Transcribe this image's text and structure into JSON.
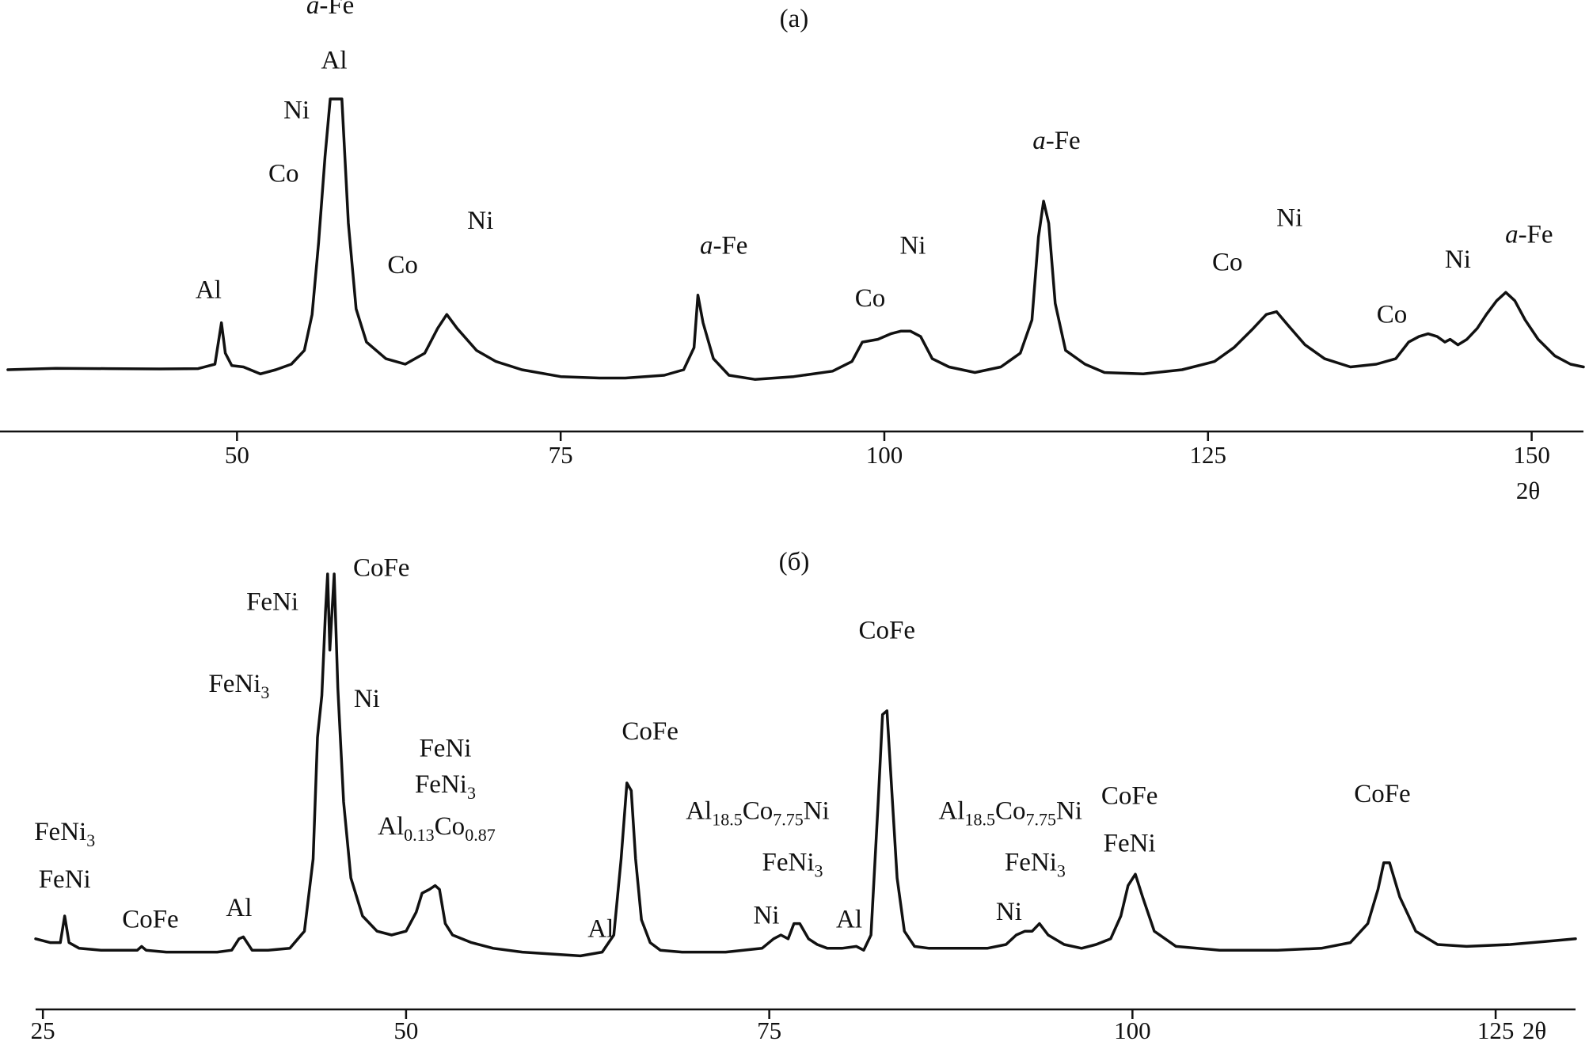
{
  "chart_data": [
    {
      "type": "line",
      "panel_label": "(а)",
      "title": "",
      "xlabel": "2θ",
      "ylabel": "",
      "xlim": [
        32,
        154
      ],
      "ylim": [
        0,
        100
      ],
      "xticks": [
        50,
        75,
        100,
        125,
        150
      ],
      "tick_labels": [
        "50",
        "75",
        "100",
        "125",
        "150"
      ],
      "grid": false,
      "legend": "none",
      "series": [
        {
          "name": "",
          "x": [
            32.3,
            36,
            40,
            44,
            47,
            48.3,
            48.8,
            49.1,
            49.6,
            50.5,
            51.8,
            53,
            54.2,
            55.2,
            55.8,
            56.3,
            56.8,
            57.2,
            57.6,
            58.1,
            58.6,
            59.2,
            60,
            61.5,
            63,
            64.5,
            65.5,
            66.2,
            67,
            68.5,
            70,
            72,
            75,
            78,
            80,
            83,
            84.5,
            85.3,
            85.6,
            86,
            86.8,
            88,
            90,
            93,
            96,
            97.5,
            98.3,
            99.5,
            100.5,
            101.3,
            102,
            102.8,
            103.7,
            105,
            107,
            109,
            110.5,
            111.4,
            111.9,
            112.3,
            112.7,
            113.2,
            114,
            115.5,
            117,
            120,
            123,
            125.5,
            127,
            128.5,
            129.5,
            130.3,
            131.2,
            132.5,
            134,
            136,
            138,
            139.5,
            140.5,
            141.3,
            142,
            142.7,
            143.3,
            143.7,
            144.3,
            145,
            145.8,
            146.5,
            147.3,
            148,
            148.7,
            149.5,
            150.5,
            151.8,
            153,
            154
          ],
          "y": [
            2,
            2.5,
            2.4,
            2.3,
            2.4,
            4,
            19,
            8,
            3.5,
            3,
            0.5,
            2,
            4,
            9,
            22,
            48,
            79,
            100,
            100,
            100,
            55,
            24,
            12,
            6,
            4,
            8,
            17,
            22,
            17,
            9,
            5,
            2,
            -0.5,
            -1,
            -1,
            0,
            2,
            10,
            29,
            19,
            6,
            0,
            -1.5,
            -0.5,
            1.5,
            5,
            12,
            13,
            15,
            16,
            16,
            14,
            6,
            3,
            1,
            3,
            8,
            20,
            50,
            63,
            55,
            26,
            9,
            4,
            1,
            0.5,
            2,
            5,
            10,
            17,
            22,
            23,
            18,
            11,
            6,
            3,
            4,
            6,
            12,
            14,
            15,
            14,
            12,
            13,
            11,
            13,
            17,
            22,
            27,
            30,
            27,
            20,
            13,
            7,
            4,
            3
          ]
        }
      ],
      "annotations": [
        {
          "text_prefix": "a",
          "text_suffix": "-Fe",
          "x": 57.2,
          "y": 131,
          "type": "afe"
        },
        {
          "text": "Al",
          "x": 57.5,
          "y": 111,
          "type": "plain"
        },
        {
          "text": "Ni",
          "x": 54.6,
          "y": 93,
          "type": "plain"
        },
        {
          "text": "Co",
          "x": 53.6,
          "y": 70,
          "type": "plain"
        },
        {
          "text": "Al",
          "x": 47.8,
          "y": 28,
          "type": "plain"
        },
        {
          "text": "Co",
          "x": 62.8,
          "y": 37,
          "type": "plain"
        },
        {
          "text": "Ni",
          "x": 68.8,
          "y": 53,
          "type": "plain"
        },
        {
          "text_prefix": "a",
          "text_suffix": "-Fe",
          "x": 87.6,
          "y": 44,
          "type": "afe"
        },
        {
          "text": "Co",
          "x": 98.9,
          "y": 25,
          "type": "plain"
        },
        {
          "text": "Ni",
          "x": 102.2,
          "y": 44,
          "type": "plain"
        },
        {
          "text_prefix": "a",
          "text_suffix": "-Fe",
          "x": 113.3,
          "y": 82,
          "type": "afe"
        },
        {
          "text": "Co",
          "x": 126.5,
          "y": 38,
          "type": "plain"
        },
        {
          "text": "Ni",
          "x": 131.3,
          "y": 54,
          "type": "plain"
        },
        {
          "text": "Co",
          "x": 139.2,
          "y": 19,
          "type": "plain"
        },
        {
          "text": "Ni",
          "x": 144.3,
          "y": 39,
          "type": "plain"
        },
        {
          "text_prefix": "a",
          "text_suffix": "-Fe",
          "x": 149.8,
          "y": 48,
          "type": "afe"
        }
      ]
    },
    {
      "type": "line",
      "panel_label": "(б)",
      "title": "",
      "xlabel": "2θ",
      "ylabel": "",
      "xlim": [
        24.5,
        130.5
      ],
      "ylim": [
        0,
        100
      ],
      "xticks": [
        25,
        50,
        75,
        100,
        125
      ],
      "tick_labels": [
        "25",
        "50",
        "75",
        "100",
        "125"
      ],
      "grid": false,
      "legend": "none",
      "series": [
        {
          "name": "",
          "x": [
            24.5,
            25.5,
            26.2,
            26.5,
            26.8,
            27.5,
            29,
            30.5,
            31.5,
            31.8,
            32.1,
            33.5,
            35,
            37,
            38,
            38.5,
            38.8,
            39.4,
            40.5,
            42,
            43,
            43.6,
            43.9,
            44.2,
            44.45,
            44.6,
            44.75,
            45.05,
            45.3,
            45.7,
            46.2,
            47,
            48,
            49,
            50,
            50.7,
            51.1,
            51.6,
            52,
            52.3,
            52.7,
            53.2,
            54.5,
            56,
            58,
            60,
            62,
            63.5,
            64.3,
            64.8,
            65.2,
            65.5,
            65.8,
            66.2,
            66.8,
            67.5,
            69,
            72,
            74.5,
            75.3,
            75.8,
            76.3,
            76.7,
            77.1,
            77.7,
            78.3,
            79,
            80,
            81,
            81.5,
            82,
            82.5,
            82.8,
            83.1,
            83.4,
            83.8,
            84.3,
            85,
            86,
            88,
            90,
            91.3,
            92,
            92.6,
            93.1,
            93.6,
            94.2,
            95.3,
            96.5,
            97.5,
            98.5,
            99.2,
            99.7,
            100.2,
            100.7,
            101.5,
            103,
            106,
            110,
            113,
            115,
            116.2,
            116.9,
            117.3,
            117.7,
            118.4,
            119.5,
            121,
            123,
            126,
            129,
            130.5
          ],
          "y": [
            4,
            3,
            3,
            10,
            3,
            1.5,
            1,
            1,
            1,
            2,
            1,
            0.5,
            0.5,
            0.5,
            1,
            4,
            4.5,
            1,
            1,
            1.5,
            6,
            25,
            57,
            68,
            90,
            100,
            80,
            100,
            70,
            40,
            20,
            10,
            6,
            5,
            6,
            11,
            16,
            17,
            18,
            17,
            8,
            5,
            3,
            1.5,
            0.5,
            0,
            -0.5,
            0.5,
            5,
            25,
            45,
            43,
            25,
            9,
            3,
            1,
            0.5,
            0.5,
            1.5,
            4,
            5,
            4,
            8,
            8,
            4,
            2.5,
            1.5,
            1.5,
            2,
            1,
            5,
            40,
            63,
            64,
            45,
            20,
            6,
            2,
            1.5,
            1.5,
            1.5,
            2.5,
            5,
            6,
            6,
            8,
            5,
            2.5,
            1.5,
            2.5,
            4,
            10,
            18,
            21,
            15,
            6,
            2,
            1,
            1,
            1.5,
            3,
            8,
            17,
            24,
            24,
            15,
            6,
            2.5,
            2,
            2.5,
            3.5,
            4
          ]
        }
      ],
      "annotations": [
        {
          "text": "CoFe",
          "x": 48.3,
          "y": 99.5,
          "sub": [],
          "type": "plain"
        },
        {
          "text": "FeNi",
          "x": 40.8,
          "y": 90.5,
          "type": "plain"
        },
        {
          "text": "FeNi",
          "sub": "3",
          "x": 38.5,
          "y": 69,
          "type": "sub1"
        },
        {
          "text": "Ni",
          "x": 47.3,
          "y": 65,
          "type": "plain"
        },
        {
          "text": "FeNi",
          "x": 52.7,
          "y": 52,
          "type": "plain"
        },
        {
          "text": "FeNi",
          "sub": "3",
          "x": 52.7,
          "y": 42.5,
          "type": "sub1"
        },
        {
          "text_parts": [
            "Al",
            "0.13",
            "Co",
            "0.87"
          ],
          "x": 52.1,
          "y": 31.5,
          "type": "sub2"
        },
        {
          "text": "FeNi",
          "sub": "3",
          "x": 26.5,
          "y": 30,
          "type": "sub1"
        },
        {
          "text": "FeNi",
          "x": 26.5,
          "y": 17.5,
          "type": "plain"
        },
        {
          "text": "CoFe",
          "x": 32.4,
          "y": 7,
          "type": "plain"
        },
        {
          "text": "Al",
          "x": 38.5,
          "y": 10,
          "type": "plain"
        },
        {
          "text": "CoFe",
          "x": 66.8,
          "y": 56.5,
          "type": "plain"
        },
        {
          "text": "Al",
          "x": 63.4,
          "y": 4.5,
          "type": "plain"
        },
        {
          "text_parts": [
            "Al",
            "18.5",
            "Co",
            "7.75",
            "Ni"
          ],
          "x": 74.2,
          "y": 35.5,
          "type": "sub3"
        },
        {
          "text": "FeNi",
          "sub": "3",
          "x": 76.6,
          "y": 22,
          "type": "sub1"
        },
        {
          "text": "Ni",
          "x": 74.8,
          "y": 8,
          "type": "plain"
        },
        {
          "text": "Al",
          "x": 80.5,
          "y": 7,
          "type": "plain"
        },
        {
          "text": "CoFe",
          "x": 83.1,
          "y": 83,
          "type": "plain"
        },
        {
          "text_parts": [
            "Al",
            "18.5",
            "Co",
            "7.75",
            "Ni"
          ],
          "x": 91.6,
          "y": 35.5,
          "type": "sub3"
        },
        {
          "text": "FeNi",
          "sub": "3",
          "x": 93.3,
          "y": 22,
          "type": "sub1"
        },
        {
          "text": "Ni",
          "x": 91.5,
          "y": 9,
          "type": "plain"
        },
        {
          "text": "CoFe",
          "x": 99.8,
          "y": 39.5,
          "type": "plain"
        },
        {
          "text": "FeNi",
          "x": 99.8,
          "y": 27,
          "type": "plain"
        },
        {
          "text": "CoFe",
          "x": 117.2,
          "y": 40,
          "type": "plain"
        }
      ]
    }
  ]
}
